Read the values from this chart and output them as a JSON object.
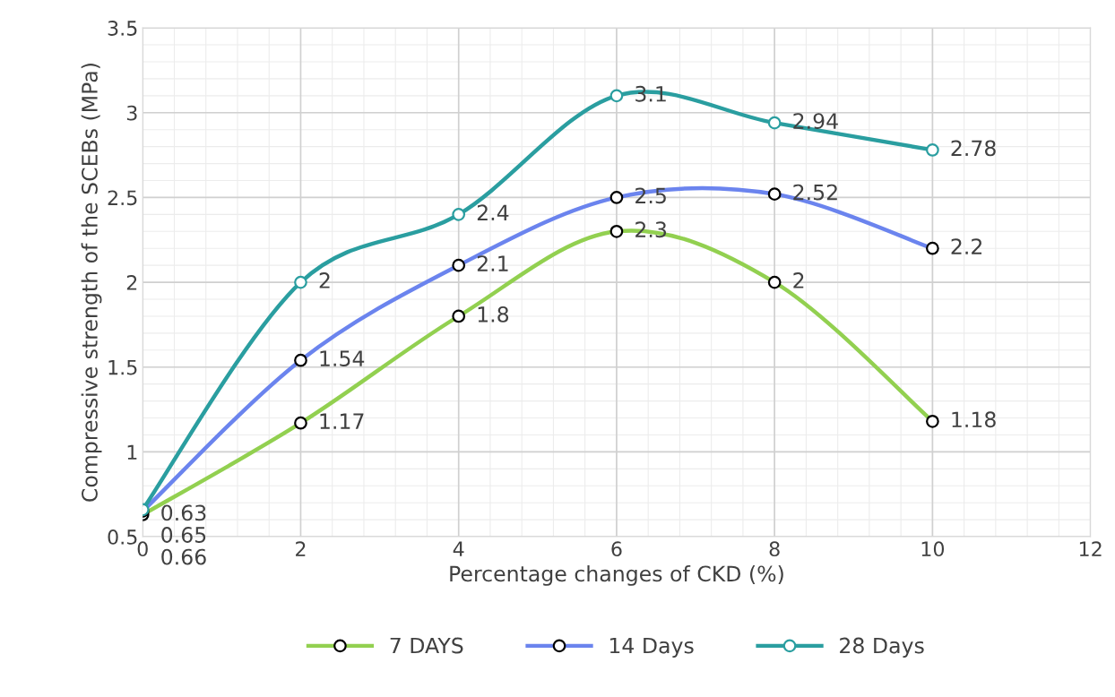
{
  "chart_data": {
    "type": "line",
    "xlabel": "Percentage changes of CKD (%)",
    "ylabel": "Compressive strength of the SCEBs (MPa)",
    "x": [
      0,
      2,
      4,
      6,
      8,
      10
    ],
    "series": [
      {
        "name": "7 DAYS",
        "color": "#92d050",
        "values": [
          0.63,
          1.17,
          1.8,
          2.3,
          2,
          1.18
        ]
      },
      {
        "name": "14 Days",
        "color": "#6b84ee",
        "values": [
          0.65,
          1.54,
          2.1,
          2.5,
          2.52,
          2.2
        ]
      },
      {
        "name": "28 Days",
        "color": "#2a9ea0",
        "values": [
          0.66,
          2,
          2.4,
          3.1,
          2.94,
          2.78
        ]
      }
    ],
    "xlim": [
      0,
      12
    ],
    "xticks": [
      0,
      2,
      4,
      6,
      8,
      10,
      12
    ],
    "ylim": [
      0.5,
      3.5
    ],
    "yticks": [
      0.5,
      1,
      1.5,
      2,
      2.5,
      3,
      3.5
    ],
    "grid": true,
    "legend": "bottom",
    "marker": "circle",
    "line_style": "solid",
    "data_labels": true
  }
}
